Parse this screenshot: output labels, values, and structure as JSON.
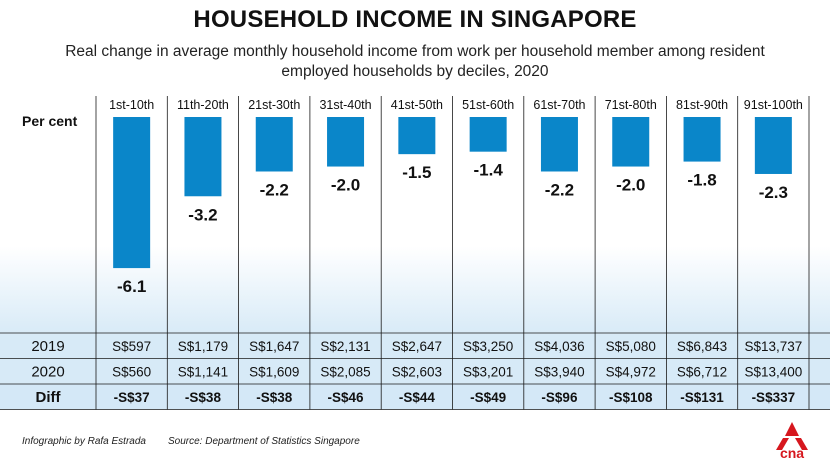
{
  "title": "HOUSEHOLD INCOME IN SINGAPORE",
  "subtitle": "Real change in average monthly household income from work per household member among resident employed households by deciles, 2020",
  "ylabel": "Per cent",
  "footer": {
    "credit": "Infographic by Rafa Estrada",
    "source": "Source: Department of Statistics Singapore",
    "logo_text": "cna"
  },
  "colors": {
    "bar": "#0a86c9",
    "diff_row": "#d4e8f7",
    "logo": "#d6171e"
  },
  "chart_data": {
    "type": "bar",
    "title": "HOUSEHOLD INCOME IN SINGAPORE",
    "ylabel": "Per cent",
    "categories": [
      "1st-10th",
      "11th-20th",
      "21st-30th",
      "31st-40th",
      "41st-50th",
      "51st-60th",
      "61st-70th",
      "71st-80th",
      "81st-90th",
      "91st-100th"
    ],
    "values": [
      -6.1,
      -3.2,
      -2.2,
      -2.0,
      -1.5,
      -1.4,
      -2.2,
      -2.0,
      -1.8,
      -2.3
    ],
    "value_labels": [
      "-6.1",
      "-3.2",
      "-2.2",
      "-2.0",
      "-1.5",
      "-1.4",
      "-2.2",
      "-2.0",
      "-1.8",
      "-2.3"
    ],
    "ylim": [
      -6.5,
      0
    ],
    "grid": false,
    "legend": "none"
  },
  "table": {
    "rows": [
      {
        "label": "2019",
        "values": [
          "S$597",
          "S$1,179",
          "S$1,647",
          "S$2,131",
          "S$2,647",
          "S$3,250",
          "S$4,036",
          "S$5,080",
          "S$6,843",
          "S$13,737"
        ]
      },
      {
        "label": "2020",
        "values": [
          "S$560",
          "S$1,141",
          "S$1,609",
          "S$2,085",
          "S$2,603",
          "S$3,201",
          "S$3,940",
          "S$4,972",
          "S$6,712",
          "S$13,400"
        ]
      },
      {
        "label": "Diff",
        "values": [
          "-S$37",
          "-S$38",
          "-S$38",
          "-S$46",
          "-S$44",
          "-S$49",
          "-S$96",
          "-S$108",
          "-S$131",
          "-S$337"
        ]
      }
    ]
  }
}
